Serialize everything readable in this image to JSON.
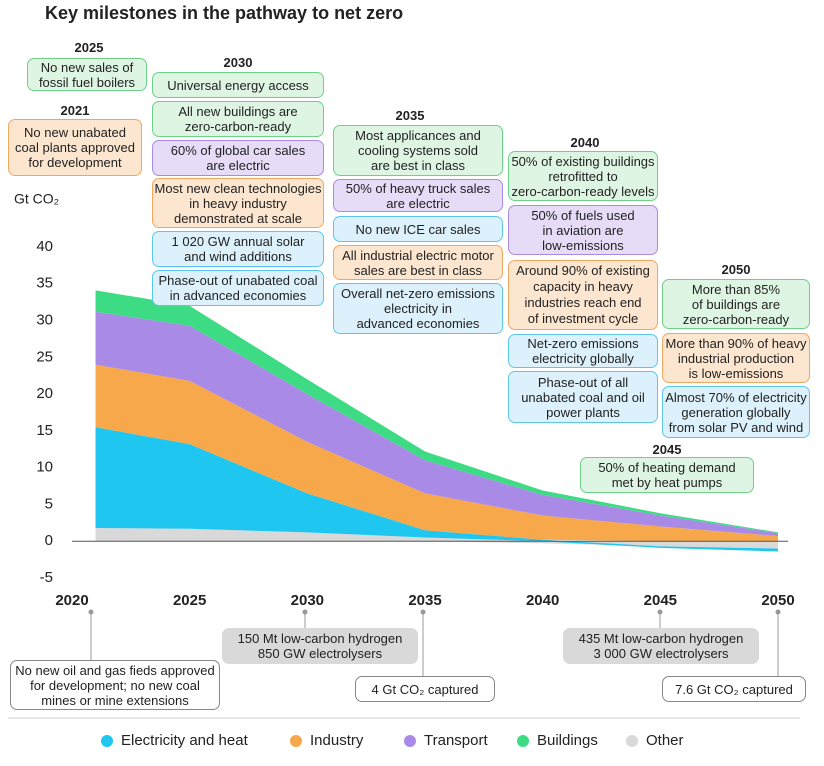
{
  "chart_data": {
    "type": "area",
    "title": "Key milestones in the pathway to net zero",
    "y_label": "Gt CO₂",
    "x": [
      2021,
      2025,
      2030,
      2035,
      2040,
      2045,
      2050
    ],
    "xlim": [
      2020,
      2050
    ],
    "xticks": [
      2020,
      2025,
      2030,
      2035,
      2040,
      2045,
      2050
    ],
    "ylim": [
      -5,
      40
    ],
    "yticks": [
      -5,
      0,
      5,
      10,
      15,
      20,
      25,
      30,
      35,
      40
    ],
    "grid": false,
    "series": [
      {
        "name": "Electricity and heat",
        "color": "#1fc6f0",
        "values": [
          13.7,
          11.5,
          5.3,
          1.0,
          0.2,
          -0.2,
          -0.4
        ]
      },
      {
        "name": "Industry",
        "color": "#f7a84a",
        "values": [
          8.5,
          8.6,
          7.0,
          5.0,
          3.3,
          2.0,
          0.7
        ]
      },
      {
        "name": "Transport",
        "color": "#a98ae6",
        "values": [
          7.2,
          7.5,
          6.5,
          4.5,
          2.8,
          1.5,
          0.4
        ]
      },
      {
        "name": "Buildings",
        "color": "#3ddc84",
        "values": [
          2.9,
          2.7,
          2.0,
          1.2,
          0.6,
          0.3,
          0.1
        ]
      },
      {
        "name": "Other",
        "color": "#d9d9d9",
        "values": [
          1.8,
          1.7,
          1.2,
          0.5,
          -0.3,
          -0.7,
          -1.0
        ]
      }
    ]
  },
  "milestones": [
    {
      "year": "2025",
      "boxes": [
        {
          "color": "green",
          "lines": [
            "No new sales of",
            "fossil fuel boilers"
          ]
        }
      ]
    },
    {
      "year": "2030",
      "boxes": [
        {
          "color": "green",
          "lines": [
            "Universal energy access"
          ]
        },
        {
          "color": "green",
          "lines": [
            "All new buildings are",
            "zero-carbon-ready"
          ]
        },
        {
          "color": "purple",
          "lines": [
            "60% of global car sales",
            "are electric"
          ]
        },
        {
          "color": "orange",
          "lines": [
            "Most new clean technologies",
            "in heavy industry",
            "demonstrated at scale"
          ]
        },
        {
          "color": "blue",
          "lines": [
            "1 020 GW annual solar",
            "and wind additions"
          ]
        },
        {
          "color": "blue",
          "lines": [
            "Phase-out of unabated coal",
            "in advanced economies"
          ]
        }
      ]
    },
    {
      "year": "2021",
      "boxes": [
        {
          "color": "orange",
          "lines": [
            "No new unabated",
            "coal plants approved",
            "for development"
          ]
        }
      ]
    },
    {
      "year": "2035",
      "boxes": [
        {
          "color": "green",
          "lines": [
            "Most applicances and",
            "cooling systems sold",
            "are best in class"
          ]
        },
        {
          "color": "purple",
          "lines": [
            "50% of heavy truck sales",
            "are electric"
          ]
        },
        {
          "color": "blue",
          "lines": [
            "No new ICE car sales"
          ]
        },
        {
          "color": "orange",
          "lines": [
            "All industrial electric motor",
            "sales are best in class"
          ]
        },
        {
          "color": "blue",
          "lines": [
            "Overall net-zero emissions",
            "electricity in",
            "advanced economies"
          ]
        }
      ]
    },
    {
      "year": "2040",
      "boxes": [
        {
          "color": "green",
          "lines": [
            "50% of existing buildings",
            "retrofitted to",
            "zero-carbon-ready levels"
          ]
        },
        {
          "color": "purple",
          "lines": [
            "50% of fuels used",
            "in aviation are",
            "low-emissions"
          ]
        },
        {
          "color": "orange",
          "lines": [
            "Around 90% of existing",
            "capacity in heavy",
            "industries reach end",
            "of investment cycle"
          ]
        },
        {
          "color": "blue",
          "lines": [
            "Net-zero emissions",
            "electricity globally"
          ]
        },
        {
          "color": "blue",
          "lines": [
            "Phase-out of all",
            "unabated coal and oil",
            "power plants"
          ]
        }
      ]
    },
    {
      "year": "2050",
      "boxes": [
        {
          "color": "green",
          "lines": [
            "More than 85%",
            "of buildings are",
            "zero-carbon-ready"
          ]
        },
        {
          "color": "orange",
          "lines": [
            "More than 90% of heavy",
            "industrial production",
            "is low-emissions"
          ]
        },
        {
          "color": "blue",
          "lines": [
            "Almost 70% of electricity",
            "generation globally",
            "from solar PV and wind"
          ]
        }
      ]
    },
    {
      "year": "2045",
      "boxes": [
        {
          "color": "green",
          "lines": [
            "50% of heating demand",
            "met by heat pumps"
          ]
        }
      ]
    }
  ],
  "bottom_milestones": [
    {
      "color": "white",
      "lines": [
        "No new oil and gas fieds approved",
        "for development; no new coal",
        "mines or mine extensions"
      ]
    },
    {
      "color": "gray",
      "lines": [
        "150 Mt low-carbon hydrogen",
        "850 GW electrolysers"
      ]
    },
    {
      "color": "white",
      "lines": [
        "4 Gt CO₂ captured"
      ]
    },
    {
      "color": "gray",
      "lines": [
        "435 Mt low-carbon hydrogen",
        "3 000 GW electrolysers"
      ]
    },
    {
      "color": "white",
      "lines": [
        "7.6 Gt CO₂ captured"
      ]
    }
  ]
}
